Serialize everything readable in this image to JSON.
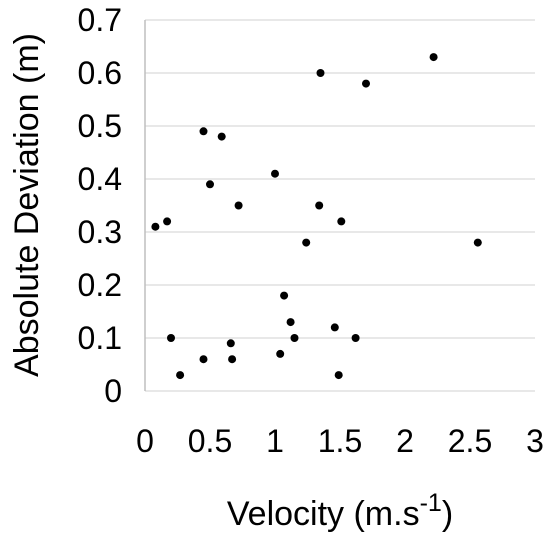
{
  "chart_data": {
    "type": "scatter",
    "title": "",
    "xlabel": "Velocity (m.s",
    "xlabel_superscript": "-1",
    "xlabel_suffix": ")",
    "ylabel": "Absolute Deviation (m)",
    "xlim": [
      0,
      3
    ],
    "ylim": [
      0,
      0.7
    ],
    "x_ticks": [
      "0",
      "0.5",
      "1",
      "1.5",
      "2",
      "2.5",
      "3"
    ],
    "y_ticks": [
      "0",
      "0.1",
      "0.2",
      "0.3",
      "0.4",
      "0.5",
      "0.6",
      "0.7"
    ],
    "grid": "horizontal",
    "series": [
      {
        "points": [
          [
            0.08,
            0.31
          ],
          [
            0.17,
            0.32
          ],
          [
            0.2,
            0.1
          ],
          [
            0.27,
            0.03
          ],
          [
            0.45,
            0.49
          ],
          [
            0.45,
            0.06
          ],
          [
            0.5,
            0.39
          ],
          [
            0.59,
            0.48
          ],
          [
            0.66,
            0.09
          ],
          [
            0.67,
            0.06
          ],
          [
            0.72,
            0.35
          ],
          [
            1.0,
            0.41
          ],
          [
            1.04,
            0.07
          ],
          [
            1.07,
            0.18
          ],
          [
            1.12,
            0.13
          ],
          [
            1.15,
            0.1
          ],
          [
            1.24,
            0.28
          ],
          [
            1.34,
            0.35
          ],
          [
            1.35,
            0.6
          ],
          [
            1.46,
            0.12
          ],
          [
            1.49,
            0.03
          ],
          [
            1.51,
            0.32
          ],
          [
            1.62,
            0.1
          ],
          [
            1.7,
            0.58
          ],
          [
            2.22,
            0.63
          ],
          [
            2.56,
            0.28
          ]
        ]
      }
    ]
  }
}
